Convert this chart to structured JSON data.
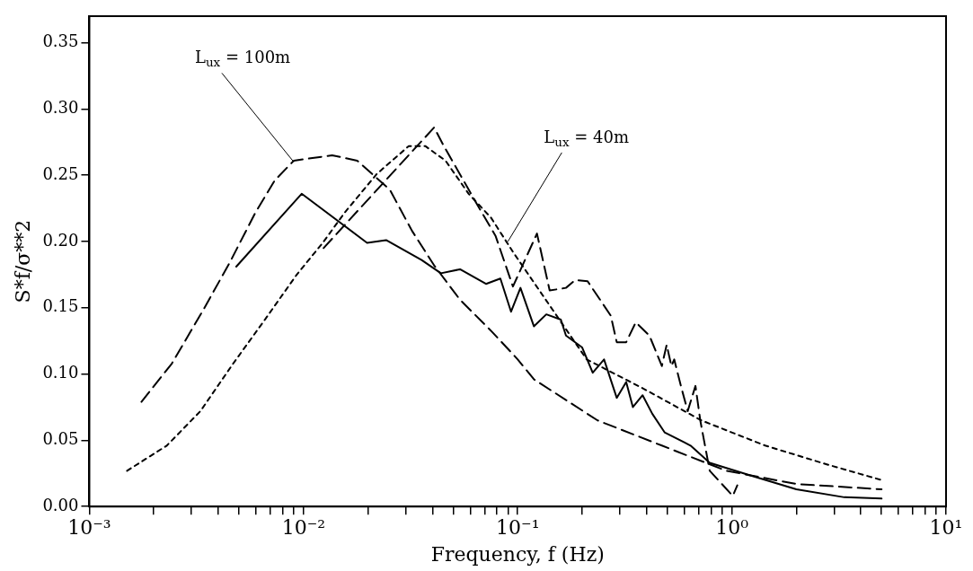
{
  "chart_data": {
    "type": "line",
    "xlabel": "Frequency, f (Hz)",
    "ylabel": "S*f/σ**2",
    "log": "x",
    "grid": false,
    "legend": false,
    "marker": "none",
    "xlim": [
      0.001,
      10
    ],
    "ylim": [
      0,
      0.37
    ],
    "xticks": [
      {
        "value": 0.001,
        "label": "10⁻³"
      },
      {
        "value": 0.002,
        "label": null
      },
      {
        "value": 0.003,
        "label": null
      },
      {
        "value": 0.004,
        "label": null
      },
      {
        "value": 0.005,
        "label": null
      },
      {
        "value": 0.006,
        "label": null
      },
      {
        "value": 0.007,
        "label": null
      },
      {
        "value": 0.008,
        "label": null
      },
      {
        "value": 0.009,
        "label": null
      },
      {
        "value": 0.01,
        "label": "10⁻²"
      },
      {
        "value": 0.02,
        "label": null
      },
      {
        "value": 0.03,
        "label": null
      },
      {
        "value": 0.04,
        "label": null
      },
      {
        "value": 0.05,
        "label": null
      },
      {
        "value": 0.06,
        "label": null
      },
      {
        "value": 0.07,
        "label": null
      },
      {
        "value": 0.08,
        "label": null
      },
      {
        "value": 0.09,
        "label": null
      },
      {
        "value": 0.1,
        "label": "10⁻¹"
      },
      {
        "value": 0.2,
        "label": null
      },
      {
        "value": 0.3,
        "label": null
      },
      {
        "value": 0.4,
        "label": null
      },
      {
        "value": 0.5,
        "label": null
      },
      {
        "value": 0.6,
        "label": null
      },
      {
        "value": 0.7,
        "label": null
      },
      {
        "value": 0.8,
        "label": null
      },
      {
        "value": 0.9,
        "label": null
      },
      {
        "value": 1,
        "label": "10⁰"
      },
      {
        "value": 2,
        "label": null
      },
      {
        "value": 3,
        "label": null
      },
      {
        "value": 4,
        "label": null
      },
      {
        "value": 5,
        "label": null
      },
      {
        "value": 6,
        "label": null
      },
      {
        "value": 7,
        "label": null
      },
      {
        "value": 8,
        "label": null
      },
      {
        "value": 9,
        "label": null
      },
      {
        "value": 10,
        "label": "10¹"
      }
    ],
    "yticks": [
      {
        "value": 0,
        "label": "0.00"
      },
      {
        "value": 0.05,
        "label": "0.05"
      },
      {
        "value": 0.1,
        "label": "0.10"
      },
      {
        "value": 0.15,
        "label": "0.15"
      },
      {
        "value": 0.2,
        "label": "0.20"
      },
      {
        "value": 0.25,
        "label": "0.25"
      },
      {
        "value": 0.3,
        "label": "0.30"
      },
      {
        "value": 0.35,
        "label": "0.35"
      }
    ],
    "series": [
      {
        "color": "#000000",
        "line_style": "solid",
        "x": [
          0.00485,
          0.0098,
          0.0198,
          0.0243,
          0.0356,
          0.0438,
          0.0538,
          0.0711,
          0.083,
          0.0931,
          0.103,
          0.119,
          0.136,
          0.159,
          0.168,
          0.2,
          0.224,
          0.253,
          0.29,
          0.321,
          0.345,
          0.383,
          0.425,
          0.485,
          0.641,
          0.788,
          1.19,
          2.0,
          3.35,
          5.0
        ],
        "values": [
          0.181,
          0.236,
          0.199,
          0.201,
          0.186,
          0.176,
          0.179,
          0.168,
          0.172,
          0.147,
          0.165,
          0.136,
          0.145,
          0.141,
          0.129,
          0.12,
          0.101,
          0.111,
          0.082,
          0.094,
          0.075,
          0.084,
          0.07,
          0.056,
          0.046,
          0.033,
          0.024,
          0.013,
          0.007,
          0.006
        ]
      },
      {
        "color": "#000000",
        "line_style": "dashed",
        "x": [
          0.0124,
          0.0407,
          0.0452,
          0.0641,
          0.0789,
          0.095,
          0.123,
          0.141,
          0.168,
          0.186,
          0.212,
          0.272,
          0.29,
          0.321,
          0.356,
          0.412,
          0.471,
          0.496,
          0.522,
          0.538,
          0.578,
          0.622,
          0.676,
          0.712,
          0.788,
          1.01,
          1.06
        ],
        "values": [
          0.195,
          0.286,
          0.272,
          0.229,
          0.204,
          0.166,
          0.206,
          0.163,
          0.165,
          0.171,
          0.17,
          0.144,
          0.124,
          0.124,
          0.139,
          0.129,
          0.106,
          0.122,
          0.106,
          0.111,
          0.091,
          0.072,
          0.091,
          0.065,
          0.027,
          0.008,
          0.016
        ]
      },
      {
        "color": "#000000",
        "line_style": "dashed",
        "x": [
          0.00175,
          0.00243,
          0.00342,
          0.00452,
          0.00597,
          0.00733,
          0.00901,
          0.0136,
          0.0178,
          0.0253,
          0.0321,
          0.0407,
          0.0538,
          0.0757,
          0.1,
          0.119,
          0.236,
          0.471,
          0.94,
          2.0,
          5.0
        ],
        "values": [
          0.079,
          0.108,
          0.149,
          0.184,
          0.222,
          0.246,
          0.261,
          0.265,
          0.261,
          0.239,
          0.208,
          0.182,
          0.156,
          0.132,
          0.111,
          0.096,
          0.065,
          0.046,
          0.027,
          0.017,
          0.013
        ]
      },
      {
        "color": "#000000",
        "line_style": "dotted",
        "x": [
          0.0015,
          0.0023,
          0.0033,
          0.0047,
          0.0066,
          0.0093,
          0.0123,
          0.0156,
          0.022,
          0.031,
          0.037,
          0.046,
          0.059,
          0.075,
          0.096,
          0.21,
          0.386,
          0.72,
          1.43,
          2.75,
          5.0
        ],
        "values": [
          0.027,
          0.046,
          0.072,
          0.108,
          0.141,
          0.175,
          0.199,
          0.222,
          0.251,
          0.272,
          0.272,
          0.261,
          0.236,
          0.218,
          0.191,
          0.111,
          0.089,
          0.065,
          0.046,
          0.032,
          0.02
        ]
      }
    ],
    "annotations": [
      {
        "text": "L$_{ux}$ = 100m",
        "x": 0.009,
        "y": 0.26
      },
      {
        "text": "L$_{ux}$ = 40m",
        "x": 0.09,
        "y": 0.2
      }
    ]
  }
}
